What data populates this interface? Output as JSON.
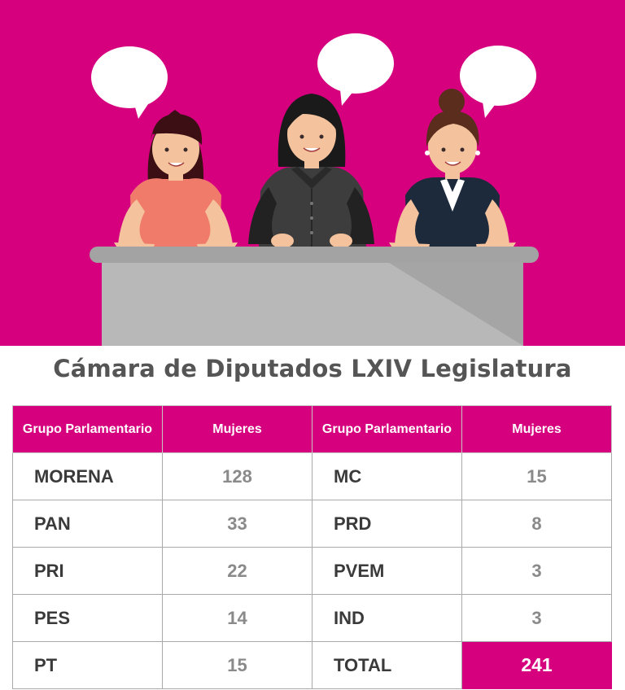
{
  "title": "Cámara de Diputados LXIV Legislatura",
  "colors": {
    "brand": "#d6007f",
    "desk": "#b3b3b3",
    "text": "#555555"
  },
  "table": {
    "headers": {
      "group": "Grupo Parlamentario",
      "women": "Mujeres"
    },
    "left": [
      {
        "party": "MORENA",
        "women": "128"
      },
      {
        "party": "PAN",
        "women": "33"
      },
      {
        "party": "PRI",
        "women": "22"
      },
      {
        "party": "PES",
        "women": "14"
      },
      {
        "party": "PT",
        "women": "15"
      }
    ],
    "right": [
      {
        "party": "MC",
        "women": "15"
      },
      {
        "party": "PRD",
        "women": "8"
      },
      {
        "party": "PVEM",
        "women": "3"
      },
      {
        "party": "IND",
        "women": "3"
      },
      {
        "party": "TOTAL",
        "women": "241"
      }
    ]
  },
  "illustration": {
    "figures": [
      "woman-left-icon",
      "woman-center-icon",
      "woman-right-icon"
    ],
    "bubbles": [
      "speech-bubble-icon",
      "speech-bubble-icon",
      "speech-bubble-icon"
    ],
    "desk": "desk-icon"
  }
}
